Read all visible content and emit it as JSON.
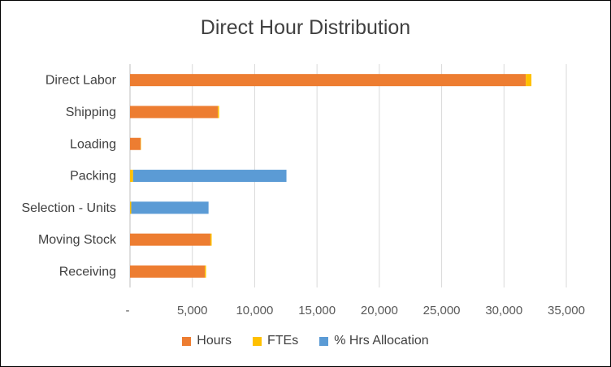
{
  "chart_data": {
    "type": "bar",
    "orientation": "horizontal",
    "stacked": true,
    "title": "Direct Hour Distribution",
    "categories": [
      "Direct Labor",
      "Shipping",
      "Loading",
      "Packing",
      "Selection - Units",
      "Moving Stock",
      "Receiving"
    ],
    "series": [
      {
        "name": "Hours",
        "color": "#ED7D31",
        "values": [
          31750,
          7050,
          850,
          null,
          null,
          6450,
          6000
        ]
      },
      {
        "name": "FTEs",
        "color": "#FFC000",
        "values": [
          450,
          100,
          30,
          250,
          100,
          100,
          100
        ]
      },
      {
        "name": "% Hrs Allocation",
        "color": "#5B9BD5",
        "values": [
          null,
          null,
          null,
          12300,
          6200,
          null,
          null
        ]
      }
    ],
    "xaxis": {
      "min": 0,
      "max": 35000,
      "step": 5000,
      "tick_labels": [
        "-",
        "5,000",
        "10,000",
        "15,000",
        "20,000",
        "25,000",
        "30,000",
        "35,000"
      ]
    },
    "grid": true,
    "legend_position": "bottom"
  }
}
